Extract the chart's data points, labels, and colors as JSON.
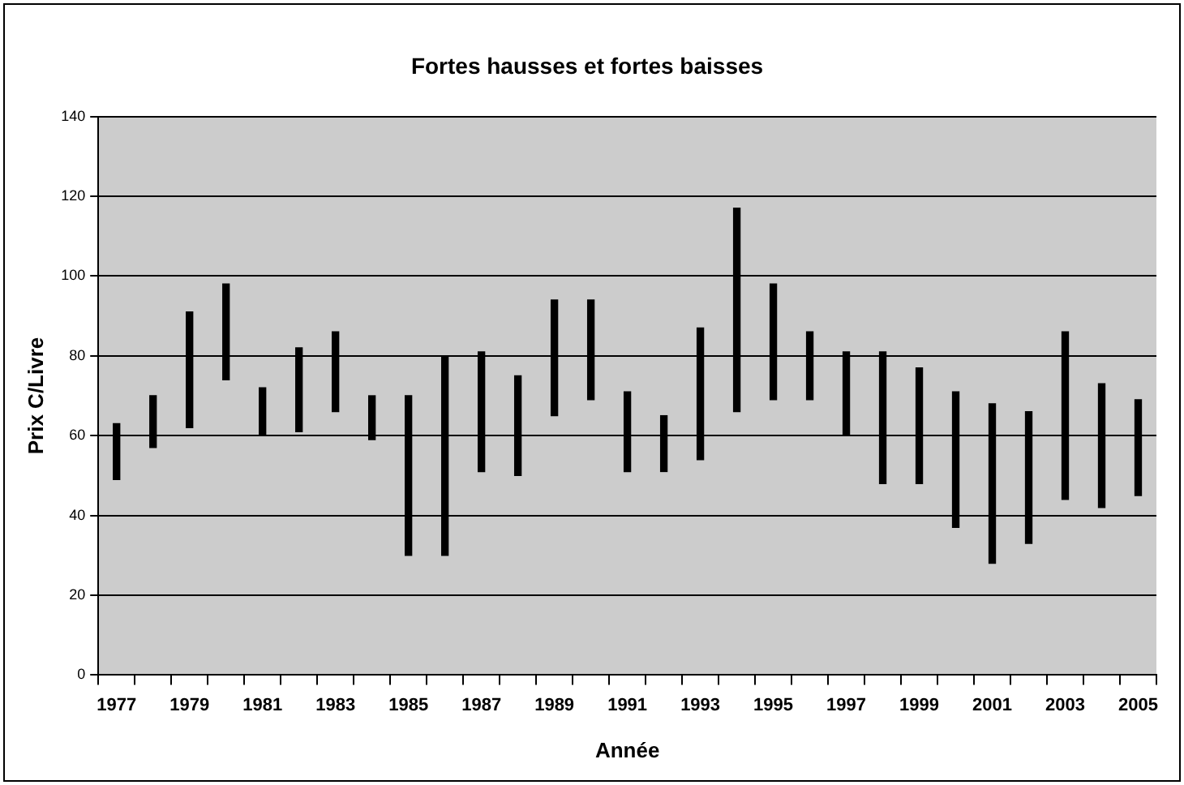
{
  "chart_data": {
    "type": "bar",
    "title": "Fortes hausses et fortes baisses",
    "xlabel": "Année",
    "ylabel": "Prix C/Livre",
    "categories": [
      "1977",
      null,
      "1979",
      null,
      "1981",
      null,
      "1983",
      null,
      "1985",
      null,
      "1987",
      null,
      "1989",
      null,
      "1991",
      null,
      "1993",
      null,
      "1995",
      null,
      "1997",
      null,
      "1999",
      null,
      "2001",
      null,
      "2003",
      null,
      "2005"
    ],
    "base": [
      49,
      57,
      62,
      74,
      60,
      61,
      66,
      59,
      30,
      30,
      51,
      50,
      65,
      69,
      51,
      51,
      54,
      66,
      69,
      69,
      60,
      48,
      48,
      37,
      28,
      33,
      44,
      42,
      45
    ],
    "values": [
      14,
      13,
      29,
      24,
      12,
      21,
      20,
      11,
      40,
      50,
      30,
      25,
      29,
      25,
      20,
      14,
      33,
      51,
      29,
      17,
      21,
      33,
      29,
      34,
      40,
      33,
      42,
      31,
      24
    ],
    "color": "#000000",
    "ylim": [
      0,
      140
    ],
    "yticks": [
      0,
      20,
      40,
      60,
      80,
      100,
      120,
      140
    ],
    "grid": "y",
    "legend": false
  }
}
